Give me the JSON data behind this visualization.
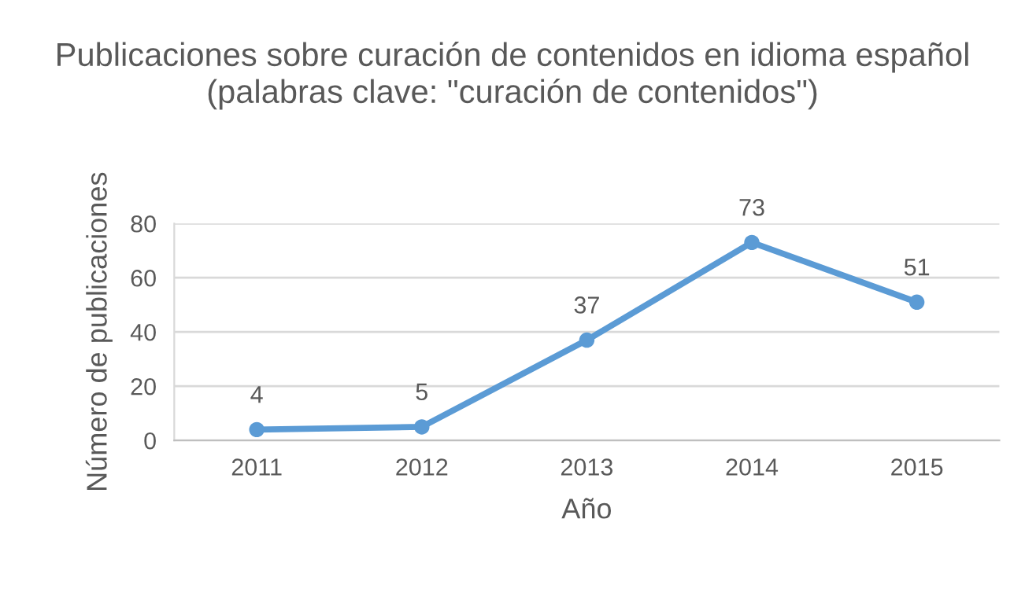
{
  "chart_data": {
    "type": "line",
    "title": "Publicaciones sobre curación de contenidos en idioma español (palabras clave: \"curación de contenidos\")",
    "xlabel": "Año",
    "ylabel": "Número de publicaciones",
    "categories": [
      "2011",
      "2012",
      "2013",
      "2014",
      "2015"
    ],
    "series": [
      {
        "color": "#5b9bd5",
        "values": [
          4,
          5,
          37,
          73,
          51
        ]
      }
    ],
    "ylim": [
      0,
      80
    ],
    "yticks": [
      0,
      20,
      40,
      60,
      80
    ],
    "grid": "y",
    "marker": "circle",
    "line_style": "solid",
    "data_labels": true
  }
}
